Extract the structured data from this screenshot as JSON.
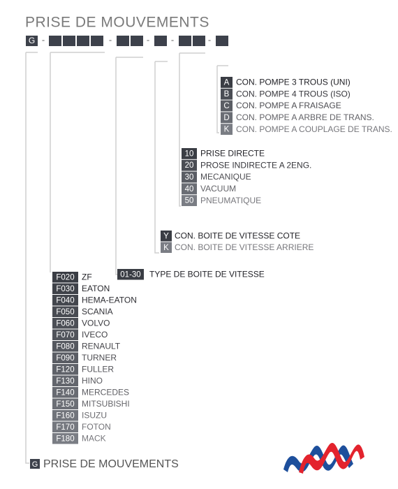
{
  "title": "PRISE DE MOUVEMENTS",
  "code_prefix": "G",
  "separator": "-",
  "groups": [
    {
      "items": [
        {
          "code": "A",
          "label": "CON. POMPE 3 TROUS (UNI)"
        },
        {
          "code": "B",
          "label": "CON. POMPE 4 TROUS (ISO)"
        },
        {
          "code": "C",
          "label": "CON. POMPE A FRAISAGE"
        },
        {
          "code": "D",
          "label": "CON. POMPE A ARBRE DE TRANS."
        },
        {
          "code": "K",
          "label": "CON. POMPE A COUPLAGE DE TRANS."
        }
      ]
    },
    {
      "items": [
        {
          "code": "10",
          "label": "PRISE DIRECTE"
        },
        {
          "code": "20",
          "label": "PROSE INDIRECTE A 2ENG."
        },
        {
          "code": "30",
          "label": "MECANIQUE"
        },
        {
          "code": "40",
          "label": "VACUUM"
        },
        {
          "code": "50",
          "label": "PNEUMATIQUE"
        }
      ]
    },
    {
      "items": [
        {
          "code": "Y",
          "label": "CON. BOITE DE VITESSE COTE"
        },
        {
          "code": "K",
          "label": "CON. BOITE DE VITESSE ARRIERE"
        }
      ]
    },
    {
      "items": [
        {
          "code": "01-30",
          "label": "TYPE DE BOITE DE VITESSE"
        }
      ]
    },
    {
      "items": [
        {
          "code": "F020",
          "label": "ZF"
        },
        {
          "code": "F030",
          "label": "EATON"
        },
        {
          "code": "F040",
          "label": "HEMA-EATON"
        },
        {
          "code": "F050",
          "label": "SCANIA"
        },
        {
          "code": "F060",
          "label": "VOLVO"
        },
        {
          "code": "F070",
          "label": "IVECO"
        },
        {
          "code": "F080",
          "label": "RENAULT"
        },
        {
          "code": "F090",
          "label": "TURNER"
        },
        {
          "code": "F120",
          "label": "FULLER"
        },
        {
          "code": "F130",
          "label": "HINO"
        },
        {
          "code": "F140",
          "label": "MERCEDES"
        },
        {
          "code": "F150",
          "label": "MITSUBISHI"
        },
        {
          "code": "F160",
          "label": "ISUZU"
        },
        {
          "code": "F170",
          "label": "FOTON"
        },
        {
          "code": "F180",
          "label": "MACK"
        }
      ]
    }
  ],
  "footer": {
    "code": "G",
    "label": "PRISE DE MOUVEMENTS"
  }
}
